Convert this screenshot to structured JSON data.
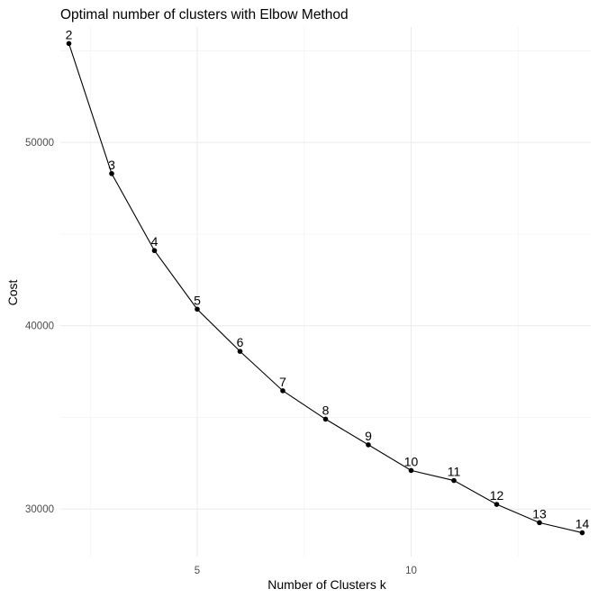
{
  "chart_data": {
    "type": "line",
    "title": "Optimal number of clusters with Elbow Method",
    "xlabel": "Number of Clusters k",
    "ylabel": "Cost",
    "x": [
      2,
      3,
      4,
      5,
      6,
      7,
      8,
      9,
      10,
      11,
      12,
      13,
      14
    ],
    "y": [
      55400,
      48300,
      44100,
      40900,
      38600,
      36450,
      34900,
      33500,
      32100,
      31550,
      30250,
      29250,
      28700
    ],
    "point_labels": [
      "2",
      "3",
      "4",
      "5",
      "6",
      "7",
      "8",
      "9",
      "10",
      "11",
      "12",
      "13",
      "14"
    ],
    "xlim": [
      1.8,
      14.2
    ],
    "ylim": [
      27400,
      56300
    ],
    "x_ticks": [
      5,
      10
    ],
    "x_tick_labels": [
      "5",
      "10"
    ],
    "y_ticks": [
      30000,
      40000,
      50000
    ],
    "y_tick_labels": [
      "30000",
      "40000",
      "50000"
    ],
    "grid": true,
    "legend": "none",
    "colors": {
      "line": "#000000",
      "points": "#000000",
      "grid": "#ebebeb"
    }
  }
}
